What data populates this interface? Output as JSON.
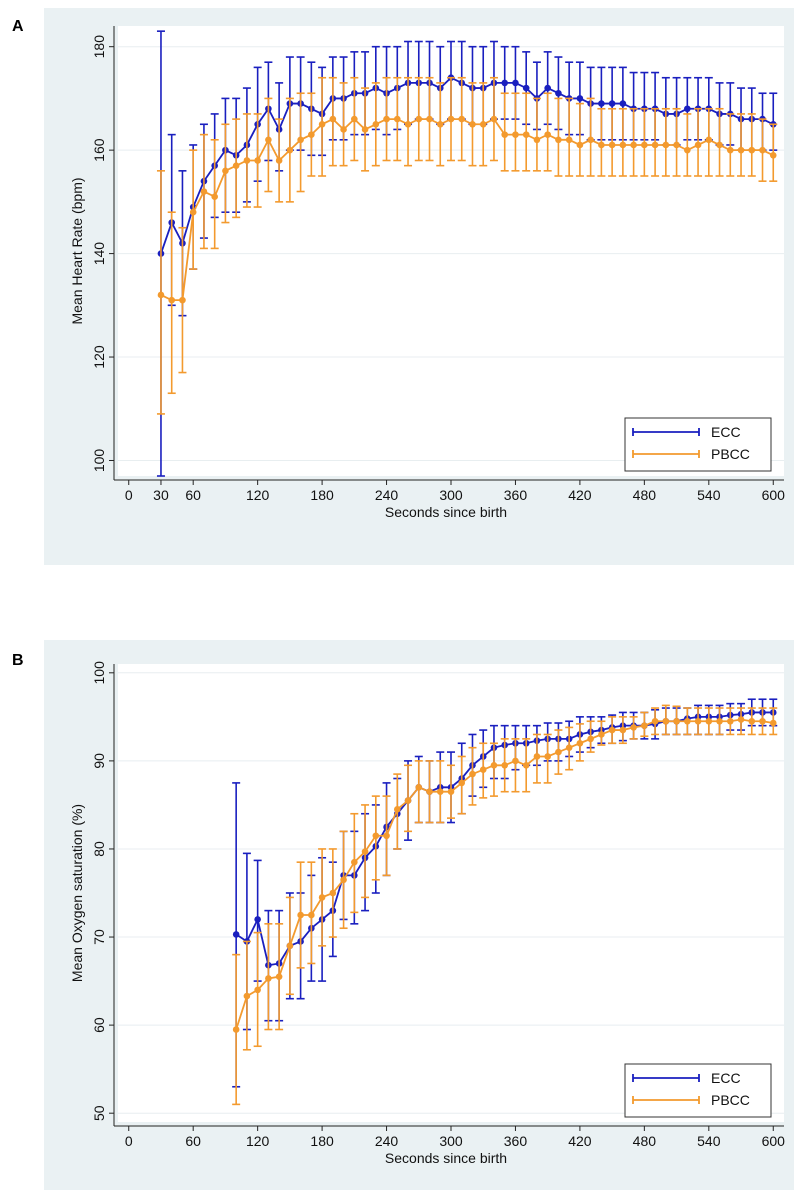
{
  "chart_data": [
    {
      "panel_label": "A",
      "type": "line",
      "xlabel": "Seconds since birth",
      "ylabel": "Mean Heart Rate (bpm)",
      "xlim": [
        -10,
        610
      ],
      "ylim": [
        97,
        184
      ],
      "x_ticks": [
        0,
        30,
        60,
        120,
        180,
        240,
        300,
        360,
        420,
        480,
        540,
        600
      ],
      "y_ticks": [
        100,
        120,
        140,
        160,
        180
      ],
      "grid": true,
      "error_bars": true,
      "legend_position": "bottom-right",
      "x": [
        30,
        40,
        50,
        60,
        70,
        80,
        90,
        100,
        110,
        120,
        130,
        140,
        150,
        160,
        170,
        180,
        190,
        200,
        210,
        220,
        230,
        240,
        250,
        260,
        270,
        280,
        290,
        300,
        310,
        320,
        330,
        340,
        350,
        360,
        370,
        380,
        390,
        400,
        410,
        420,
        430,
        440,
        450,
        460,
        470,
        480,
        490,
        500,
        510,
        520,
        530,
        540,
        550,
        560,
        570,
        580,
        590,
        600
      ],
      "series": [
        {
          "name": "ECC",
          "color": "#1a1fbf",
          "mean": [
            140,
            146,
            142,
            149,
            154,
            157,
            160,
            159,
            161,
            165,
            168,
            164,
            169,
            169,
            168,
            167,
            170,
            170,
            171,
            171,
            172,
            171,
            172,
            173,
            173,
            173,
            172,
            174,
            173,
            172,
            172,
            173,
            173,
            173,
            172,
            170,
            172,
            171,
            170,
            170,
            169,
            169,
            169,
            169,
            168,
            168,
            168,
            167,
            167,
            168,
            168,
            168,
            167,
            167,
            166,
            166,
            166,
            165
          ],
          "lower": [
            97,
            130,
            128,
            137,
            143,
            147,
            148,
            148,
            150,
            154,
            158,
            156,
            160,
            160,
            159,
            159,
            162,
            162,
            163,
            163,
            164,
            163,
            164,
            165,
            166,
            166,
            165,
            166,
            166,
            165,
            165,
            166,
            166,
            166,
            165,
            164,
            165,
            164,
            163,
            163,
            162,
            162,
            162,
            162,
            162,
            162,
            162,
            161,
            161,
            162,
            162,
            162,
            161,
            161,
            160,
            160,
            160,
            160
          ],
          "upper": [
            183,
            163,
            156,
            161,
            165,
            167,
            170,
            170,
            172,
            176,
            177,
            173,
            178,
            178,
            177,
            176,
            178,
            178,
            179,
            179,
            180,
            180,
            180,
            181,
            181,
            181,
            180,
            181,
            181,
            180,
            180,
            181,
            180,
            180,
            179,
            177,
            179,
            178,
            177,
            177,
            176,
            176,
            176,
            176,
            175,
            175,
            175,
            174,
            174,
            174,
            174,
            174,
            173,
            173,
            172,
            172,
            171,
            171
          ]
        },
        {
          "name": "PBCC",
          "color": "#f39a2e",
          "mean": [
            132,
            131,
            131,
            148,
            152,
            151,
            156,
            157,
            158,
            158,
            162,
            158,
            160,
            162,
            163,
            165,
            166,
            164,
            166,
            164,
            165,
            166,
            166,
            165,
            166,
            166,
            165,
            166,
            166,
            165,
            165,
            166,
            163,
            163,
            163,
            162,
            163,
            162,
            162,
            161,
            162,
            161,
            161,
            161,
            161,
            161,
            161,
            161,
            161,
            160,
            161,
            162,
            161,
            160,
            160,
            160,
            160,
            159
          ],
          "lower": [
            109,
            113,
            117,
            137,
            141,
            141,
            146,
            147,
            149,
            149,
            152,
            150,
            150,
            152,
            155,
            155,
            157,
            157,
            158,
            156,
            157,
            158,
            158,
            157,
            158,
            158,
            157,
            158,
            158,
            157,
            157,
            158,
            156,
            156,
            156,
            156,
            156,
            155,
            155,
            155,
            155,
            155,
            155,
            155,
            155,
            155,
            155,
            155,
            155,
            155,
            155,
            155,
            155,
            155,
            155,
            155,
            154,
            154
          ],
          "upper": [
            156,
            148,
            145,
            160,
            163,
            162,
            165,
            166,
            167,
            167,
            170,
            166,
            170,
            171,
            171,
            174,
            174,
            173,
            174,
            172,
            173,
            174,
            174,
            174,
            174,
            174,
            173,
            174,
            174,
            173,
            173,
            174,
            171,
            171,
            171,
            170,
            171,
            170,
            170,
            169,
            170,
            168,
            168,
            168,
            168,
            168,
            168,
            168,
            168,
            167,
            168,
            168,
            168,
            167,
            167,
            167,
            166,
            165
          ]
        }
      ]
    },
    {
      "panel_label": "B",
      "type": "line",
      "xlabel": "Seconds since birth",
      "ylabel": "Mean Oxygen saturation (%)",
      "xlim": [
        -10,
        610
      ],
      "ylim": [
        49,
        101
      ],
      "x_ticks": [
        0,
        60,
        120,
        180,
        240,
        300,
        360,
        420,
        480,
        540,
        600
      ],
      "y_ticks": [
        50,
        60,
        70,
        80,
        90,
        100
      ],
      "grid": true,
      "error_bars": true,
      "legend_position": "bottom-right",
      "x": [
        100,
        110,
        120,
        130,
        140,
        150,
        160,
        170,
        180,
        190,
        200,
        210,
        220,
        230,
        240,
        250,
        260,
        270,
        280,
        290,
        300,
        310,
        320,
        330,
        340,
        350,
        360,
        370,
        380,
        390,
        400,
        410,
        420,
        430,
        440,
        450,
        460,
        470,
        480,
        490,
        500,
        510,
        520,
        530,
        540,
        550,
        560,
        570,
        580,
        590,
        600
      ],
      "series": [
        {
          "name": "ECC",
          "color": "#1a1fbf",
          "mean": [
            70.3,
            69.5,
            72,
            66.8,
            67,
            69,
            69.5,
            71,
            72,
            73,
            77,
            77,
            79,
            80.3,
            82.5,
            84,
            85.5,
            87,
            86.5,
            87,
            87,
            88,
            89.5,
            90.5,
            91.5,
            91.8,
            92,
            92,
            92.3,
            92.5,
            92.5,
            92.5,
            93,
            93.3,
            93.5,
            93.8,
            94,
            94,
            94,
            94.2,
            94.5,
            94.5,
            94.8,
            95,
            95,
            95,
            95.2,
            95.3,
            95.5,
            95.5,
            95.5
          ],
          "lower": [
            53,
            59.5,
            65,
            60.5,
            60.5,
            63,
            63,
            65,
            65,
            67.8,
            72,
            71.5,
            73,
            75,
            77,
            80,
            81,
            83,
            83,
            83,
            83,
            84,
            86,
            87,
            88,
            88,
            89,
            89.5,
            89.5,
            90,
            90,
            90.5,
            91,
            91.5,
            92,
            92,
            92.3,
            92.5,
            92.5,
            92.5,
            93,
            93,
            93,
            93,
            93,
            93,
            93.5,
            93.5,
            94,
            94,
            94
          ],
          "upper": [
            87.5,
            79.5,
            78.7,
            73,
            73,
            75,
            75,
            77,
            79,
            78.5,
            82,
            82,
            84,
            85,
            87.5,
            88,
            90,
            90.5,
            90,
            91,
            91,
            92,
            93,
            93.5,
            94,
            94,
            94,
            94,
            94,
            94.3,
            94.3,
            94.5,
            95,
            95,
            95,
            95.2,
            95.5,
            95.5,
            95.5,
            95.8,
            96,
            96,
            96,
            96.3,
            96.3,
            96.3,
            96.5,
            96.5,
            97,
            97,
            97
          ]
        },
        {
          "name": "PBCC",
          "color": "#f39a2e",
          "mean": [
            59.5,
            63.3,
            64,
            65.3,
            65.5,
            69,
            72.5,
            72.5,
            74.5,
            75,
            76.5,
            78.5,
            79.7,
            81.5,
            81.5,
            84.5,
            85.5,
            87,
            86.5,
            86.5,
            86.5,
            87.5,
            88.5,
            89,
            89.5,
            89.5,
            90,
            89.5,
            90.5,
            90.5,
            91,
            91.5,
            92,
            92.5,
            93,
            93.5,
            93.5,
            93.8,
            94,
            94.5,
            94.5,
            94.5,
            94.5,
            94.5,
            94.5,
            94.5,
            94.5,
            94.7,
            94.5,
            94.5,
            94.3
          ],
          "lower": [
            51,
            57.2,
            57.6,
            59.5,
            59.5,
            63.5,
            66.5,
            67,
            69,
            70,
            71,
            72.8,
            74.5,
            76.5,
            77,
            80,
            82,
            83,
            83,
            83,
            83.5,
            84,
            85,
            85.8,
            86,
            86.5,
            86.5,
            86.5,
            87.5,
            87.5,
            88.5,
            89,
            90,
            91,
            91.8,
            92,
            92,
            92.5,
            92.8,
            93,
            93,
            93,
            93,
            93,
            93,
            93,
            93,
            93,
            93,
            93,
            93
          ],
          "upper": [
            68,
            69.5,
            70.5,
            71.5,
            71.5,
            74.5,
            78.5,
            78.5,
            80,
            80,
            82,
            84,
            85,
            86,
            86,
            88.5,
            89.5,
            90,
            90,
            90,
            89.5,
            90.5,
            91.5,
            92,
            92,
            92.5,
            92.5,
            92.5,
            93,
            93,
            93.5,
            93.8,
            94.2,
            94.5,
            94.5,
            95,
            95,
            95,
            95.5,
            96,
            96.3,
            96.2,
            96,
            96,
            96,
            96,
            96,
            96,
            96,
            96,
            96
          ]
        }
      ]
    }
  ]
}
